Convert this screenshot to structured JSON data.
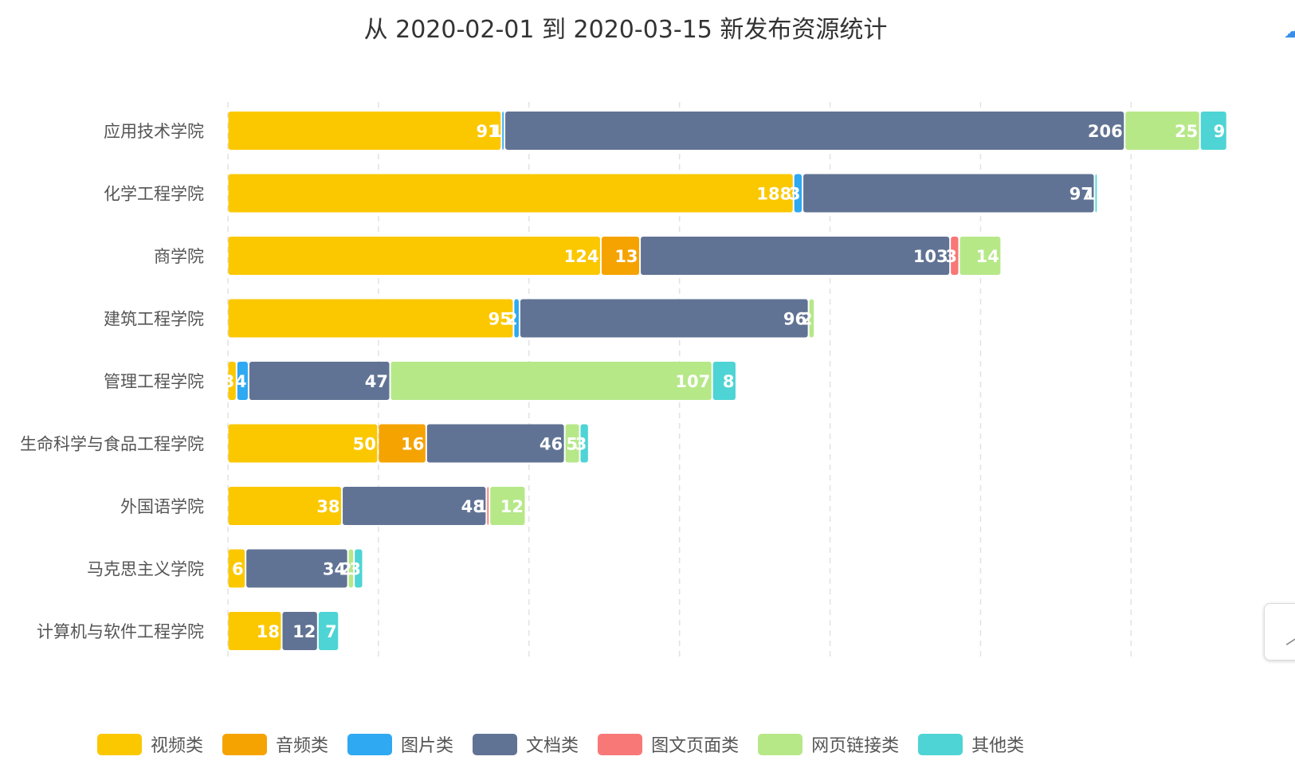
{
  "chart_data": {
    "type": "bar",
    "orientation": "horizontal",
    "stacked": true,
    "title": "从 2020-02-01 到 2020-03-15 新发布资源统计",
    "categories": [
      "应用技术学院",
      "化学工程学院",
      "商学院",
      "建筑工程学院",
      "管理工程学院",
      "生命科学与食品工程学院",
      "外国语学院",
      "马克思主义学院",
      "计算机与软件工程学院"
    ],
    "series": [
      {
        "name": "视频类",
        "color": "#FBC800",
        "values": [
          91,
          188,
          124,
          95,
          3,
          50,
          38,
          6,
          18
        ]
      },
      {
        "name": "音频类",
        "color": "#F5A300",
        "values": [
          0,
          0,
          13,
          0,
          0,
          16,
          0,
          0,
          0
        ]
      },
      {
        "name": "图片类",
        "color": "#2EA9F2",
        "values": [
          1,
          3,
          0,
          2,
          4,
          0,
          0,
          0,
          0
        ]
      },
      {
        "name": "文档类",
        "color": "#617394",
        "values": [
          206,
          97,
          103,
          96,
          47,
          46,
          48,
          34,
          12
        ]
      },
      {
        "name": "图文页面类",
        "color": "#F77877",
        "values": [
          0,
          0,
          3,
          0,
          0,
          0,
          1,
          0,
          0
        ]
      },
      {
        "name": "网页链接类",
        "color": "#B6E888",
        "values": [
          25,
          0,
          14,
          2,
          107,
          5,
          12,
          2,
          0
        ]
      },
      {
        "name": "其他类",
        "color": "#4ED4D4",
        "values": [
          9,
          1,
          0,
          0,
          8,
          3,
          0,
          3,
          7
        ]
      }
    ],
    "xlim": [
      0,
      360
    ],
    "x_tick_step": 50,
    "grid": true,
    "legend_position": "bottom"
  },
  "corner_icon": "cloud-icon",
  "back_to_top_icon": "chevron-up-icon"
}
